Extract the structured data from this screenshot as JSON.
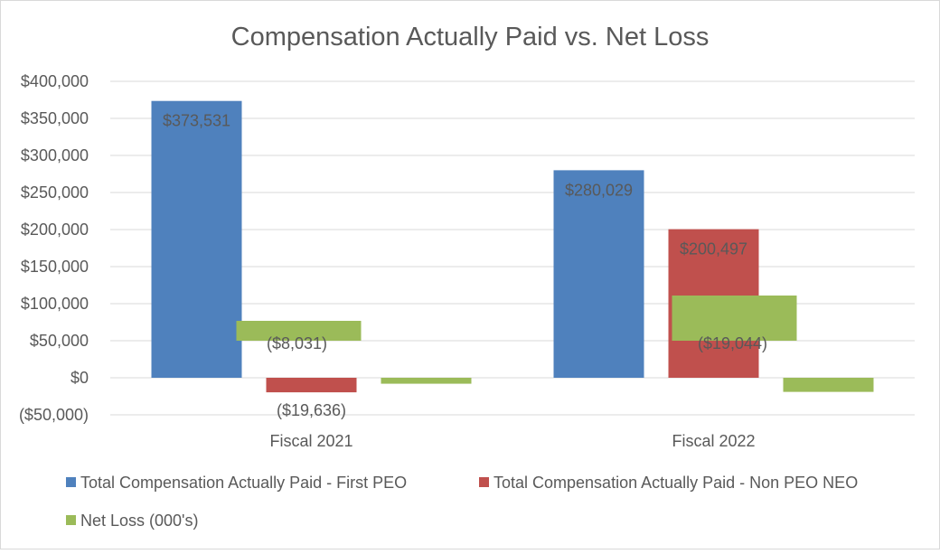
{
  "chart_data": {
    "type": "bar",
    "title": "Compensation Actually Paid vs. Net Loss",
    "categories": [
      "Fiscal 2021",
      "Fiscal 2022"
    ],
    "ylim": [
      -50000,
      400000
    ],
    "ytick_step": 50000,
    "ytick_labels": [
      "($50,000)",
      "$0",
      "$50,000",
      "$100,000",
      "$150,000",
      "$200,000",
      "$250,000",
      "$300,000",
      "$350,000",
      "$400,000"
    ],
    "grid": true,
    "legend_position": "bottom",
    "series": [
      {
        "name": "Total Compensation Actually Paid - First PEO",
        "color": "#4F81BD",
        "values": [
          373531,
          280029
        ],
        "labels": [
          "$373,531",
          "$280,029"
        ]
      },
      {
        "name": "Total Compensation Actually Paid - Non PEO NEO",
        "color": "#C0504D",
        "values": [
          -19636,
          200497
        ],
        "labels": [
          "($19,636)",
          "$200,497"
        ]
      },
      {
        "name": "Net Loss (000's)",
        "color": "#9BBB59",
        "values": [
          -8031,
          -19044
        ],
        "labels": [
          "($8,031)",
          "($19,044)"
        ]
      }
    ]
  }
}
